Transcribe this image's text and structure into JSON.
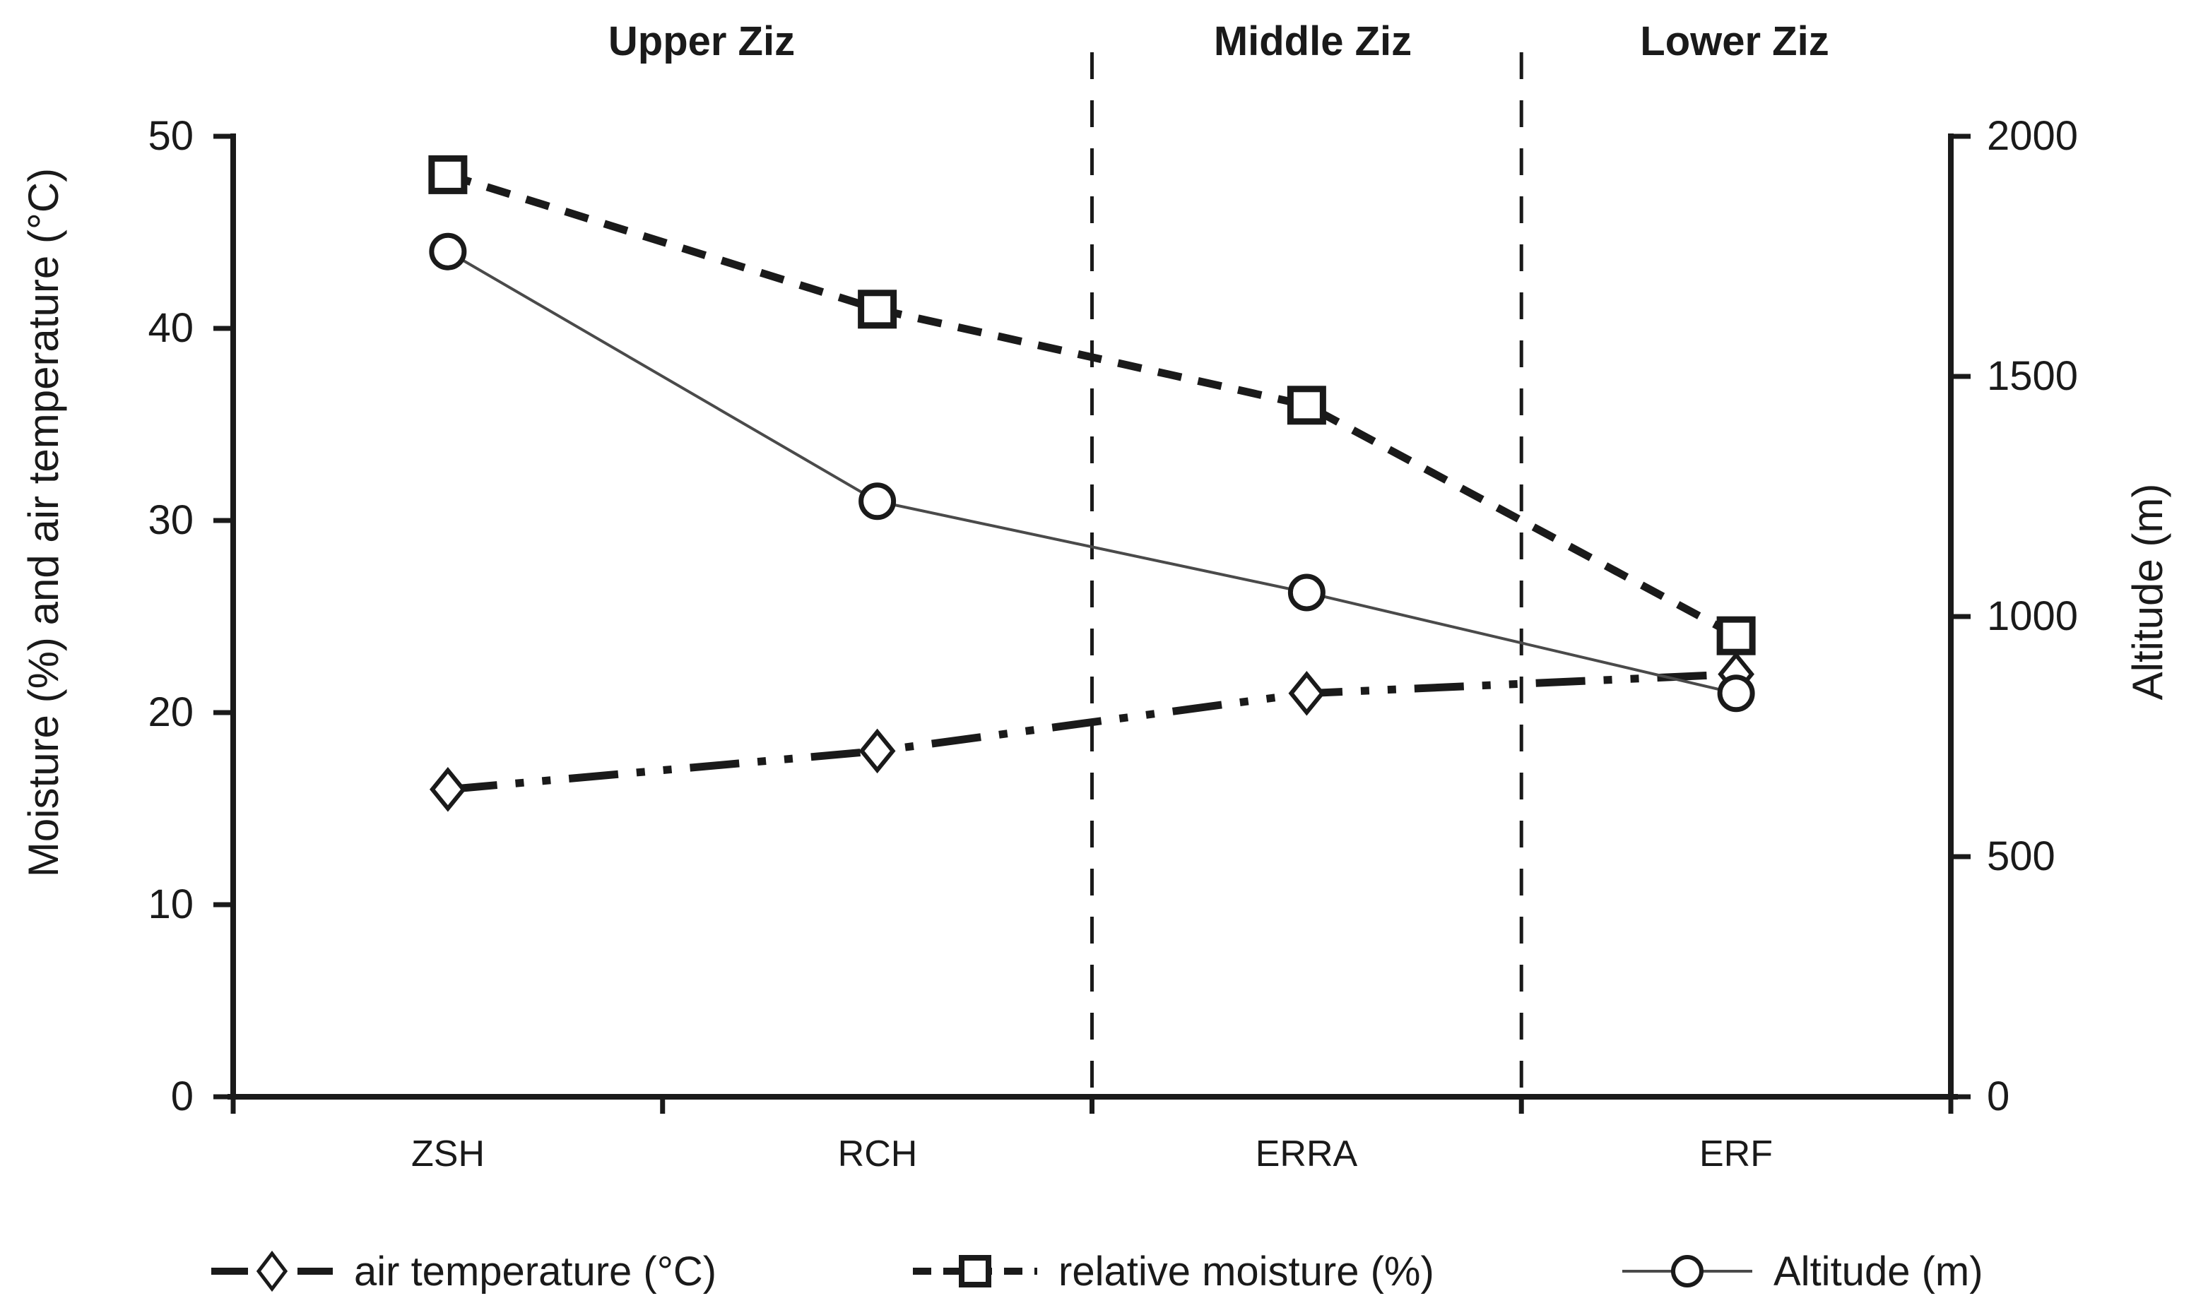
{
  "chart_data": {
    "type": "line",
    "categories": [
      "ZSH",
      "RCH",
      "ERRA",
      "ERF"
    ],
    "regions": [
      {
        "label": "Upper Ziz",
        "from": 0,
        "to": 2
      },
      {
        "label": "Middle Ziz",
        "from": 2,
        "to": 3
      },
      {
        "label": "Lower Ziz",
        "from": 3,
        "to": 4
      }
    ],
    "left_axis": {
      "label": "Moisture (%) and air temperature (°C)",
      "min": 0,
      "max": 50,
      "ticks": [
        50,
        40,
        30,
        20,
        10,
        0
      ]
    },
    "right_axis": {
      "label": "Altitude (m)",
      "min": 0,
      "max": 2000,
      "ticks": [
        2000,
        1500,
        1000,
        500,
        0
      ]
    },
    "series": [
      {
        "name": "air temperature (°C)",
        "axis": "left",
        "marker": "diamond",
        "line_style": "long-dash-dot-dot",
        "values": [
          16,
          18,
          21,
          22
        ]
      },
      {
        "name": "relative moisture (%)",
        "axis": "left",
        "marker": "square",
        "line_style": "dashed",
        "values": [
          48,
          41,
          36,
          24
        ]
      },
      {
        "name": "Altitude (m)",
        "axis": "right",
        "marker": "circle",
        "line_style": "solid",
        "values": [
          1760,
          1240,
          1050,
          840
        ]
      }
    ],
    "legend": {
      "position": "bottom"
    },
    "colors": {
      "line": "#1a1a1a",
      "altitude_line": "#4a4a4a",
      "text": "#1a1a1a",
      "background": "#ffffff"
    },
    "grid": "off"
  }
}
